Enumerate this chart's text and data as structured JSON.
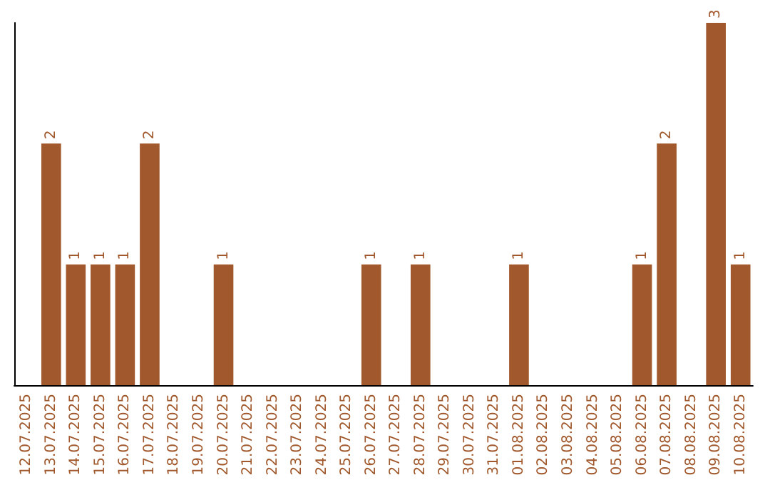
{
  "chart_data": {
    "type": "bar",
    "categories": [
      "12.07.2025",
      "13.07.2025",
      "14.07.2025",
      "15.07.2025",
      "16.07.2025",
      "17.07.2025",
      "18.07.2025",
      "19.07.2025",
      "20.07.2025",
      "21.07.2025",
      "22.07.2025",
      "23.07.2025",
      "24.07.2025",
      "25.07.2025",
      "26.07.2025",
      "27.07.2025",
      "28.07.2025",
      "29.07.2025",
      "30.07.2025",
      "31.07.2025",
      "01.08.2025",
      "02.08.2025",
      "03.08.2025",
      "04.08.2025",
      "05.08.2025",
      "06.08.2025",
      "07.08.2025",
      "08.08.2025",
      "09.08.2025",
      "10.08.2025"
    ],
    "values": [
      0,
      2,
      1,
      1,
      1,
      2,
      0,
      0,
      1,
      0,
      0,
      0,
      0,
      0,
      1,
      0,
      1,
      0,
      0,
      0,
      1,
      0,
      0,
      0,
      0,
      1,
      2,
      0,
      3,
      1
    ],
    "value_labels": [
      null,
      "2",
      "1",
      "1",
      "1",
      "2",
      null,
      null,
      "1",
      null,
      null,
      null,
      null,
      null,
      "1",
      null,
      "1",
      null,
      null,
      null,
      "1",
      null,
      null,
      null,
      null,
      "1",
      "2",
      null,
      "3",
      "1"
    ],
    "color": "#a0582c",
    "grid": false,
    "tick_labels": "x"
  }
}
